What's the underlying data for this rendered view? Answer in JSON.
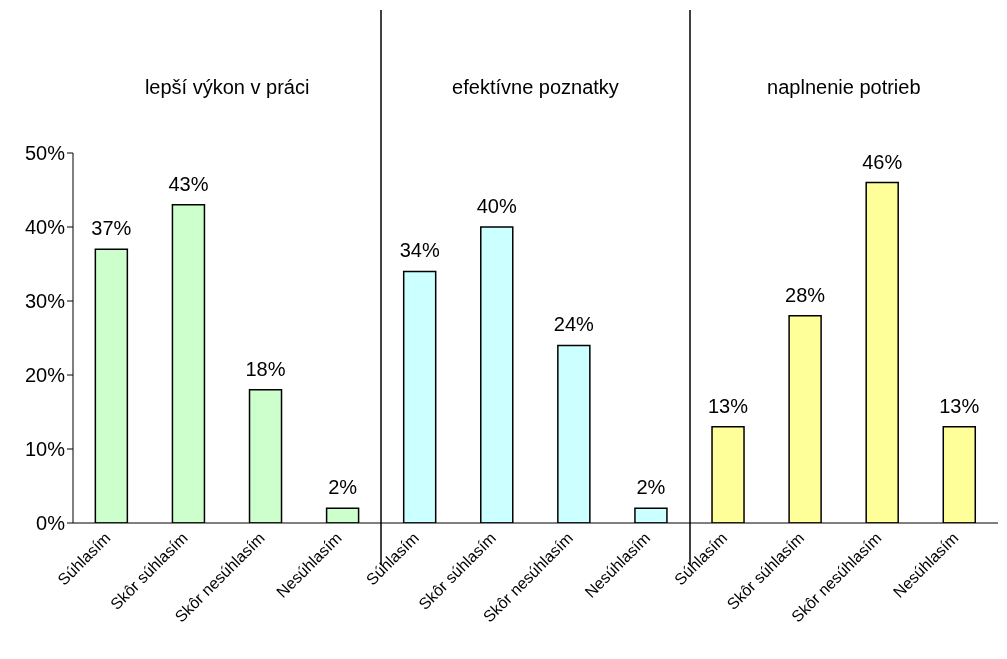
{
  "chart_data": {
    "type": "bar",
    "categories": [
      "Súhlasím",
      "Skôr súhlasím",
      "Skôr nesúhlasím",
      "Nesúhlasím",
      "Súhlasím",
      "Skôr súhlasím",
      "Skôr nesúhlasím",
      "Nesúhlasím",
      "Súhlasím",
      "Skôr súhlasím",
      "Skôr nesúhlasím",
      "Nesúhlasím"
    ],
    "values": [
      37,
      43,
      18,
      2,
      34,
      40,
      24,
      2,
      13,
      28,
      46,
      13
    ],
    "value_labels": [
      "37%",
      "43%",
      "18%",
      "2%",
      "34%",
      "40%",
      "24%",
      "2%",
      "13%",
      "28%",
      "46%",
      "13%"
    ],
    "colors": [
      "#ccffcc",
      "#ccffcc",
      "#ccffcc",
      "#ccffcc",
      "#ccffff",
      "#ccffff",
      "#ccffff",
      "#ccffff",
      "#ffff99",
      "#ffff99",
      "#ffff99",
      "#ffff99"
    ],
    "ylim": [
      0,
      50
    ],
    "yticks": [
      {
        "value": 0,
        "label": "0%"
      },
      {
        "value": 10,
        "label": "10%"
      },
      {
        "value": 20,
        "label": "20%"
      },
      {
        "value": 30,
        "label": "30%"
      },
      {
        "value": 40,
        "label": "40%"
      },
      {
        "value": 50,
        "label": "50%"
      }
    ],
    "annotations": [
      "lepší výkon v práci",
      "efektívne poznatky",
      "naplnenie potrieb"
    ]
  }
}
